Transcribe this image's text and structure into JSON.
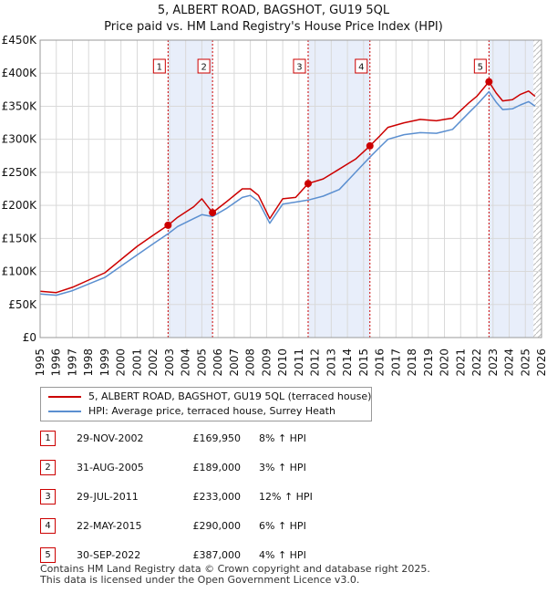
{
  "header": {
    "title": "5, ALBERT ROAD, BAGSHOT, GU19 5QL",
    "subtitle": "Price paid vs. HM Land Registry's House Price Index (HPI)"
  },
  "legend": {
    "series_property": "5, ALBERT ROAD, BAGSHOT, GU19 5QL (terraced house)",
    "series_hpi": "HPI: Average price, terraced house, Surrey Heath"
  },
  "colors": {
    "property": "#cc0000",
    "hpi": "#5b8fd0",
    "shade": "#e8eefa",
    "grid": "#d9d9d9",
    "marker_border": "#cc0000"
  },
  "sales": [
    {
      "num": "1",
      "date": "29-NOV-2002",
      "price": "£169,950",
      "hpi": "8% ↑ HPI"
    },
    {
      "num": "2",
      "date": "31-AUG-2005",
      "price": "£189,000",
      "hpi": "3% ↑ HPI"
    },
    {
      "num": "3",
      "date": "29-JUL-2011",
      "price": "£233,000",
      "hpi": "12% ↑ HPI"
    },
    {
      "num": "4",
      "date": "22-MAY-2015",
      "price": "£290,000",
      "hpi": "6% ↑ HPI"
    },
    {
      "num": "5",
      "date": "30-SEP-2022",
      "price": "£387,000",
      "hpi": "4% ↑ HPI"
    }
  ],
  "footer": {
    "line1": "Contains HM Land Registry data © Crown copyright and database right 2025.",
    "line2": "This data is licensed under the Open Government Licence v3.0."
  },
  "chart_data": {
    "type": "line",
    "title": "5, ALBERT ROAD, BAGSHOT, GU19 5QL",
    "subtitle": "Price paid vs. HM Land Registry's House Price Index (HPI)",
    "xlabel": "",
    "ylabel": "",
    "xlim": [
      1995,
      2026
    ],
    "ylim": [
      0,
      450000
    ],
    "y_ticks": [
      0,
      50000,
      100000,
      150000,
      200000,
      250000,
      300000,
      350000,
      400000,
      450000
    ],
    "y_tick_labels": [
      "£0",
      "£50K",
      "£100K",
      "£150K",
      "£200K",
      "£250K",
      "£300K",
      "£350K",
      "£400K",
      "£450K"
    ],
    "x_ticks": [
      1995,
      1996,
      1997,
      1998,
      1999,
      2000,
      2001,
      2002,
      2003,
      2004,
      2005,
      2006,
      2007,
      2008,
      2009,
      2010,
      2011,
      2012,
      2013,
      2014,
      2015,
      2016,
      2017,
      2018,
      2019,
      2020,
      2021,
      2022,
      2023,
      2024,
      2025,
      2026
    ],
    "grid": true,
    "legend_position": "bottom-left",
    "shaded_ranges": [
      [
        2002.91,
        2005.66
      ],
      [
        2011.57,
        2015.39
      ],
      [
        2022.75,
        2025.5
      ]
    ],
    "future_hatch_from": 2025.5,
    "series": [
      {
        "name": "5, ALBERT ROAD, BAGSHOT, GU19 5QL (terraced house)",
        "x": [
          1995.0,
          1996.0,
          1997.0,
          1998.0,
          1999.0,
          2000.0,
          2001.0,
          2002.0,
          2002.91,
          2003.5,
          2004.5,
          2005.0,
          2005.66,
          2006.5,
          2007.5,
          2008.0,
          2008.5,
          2009.2,
          2010.0,
          2010.8,
          2011.57,
          2012.5,
          2013.5,
          2014.5,
          2015.39,
          2016.0,
          2016.5,
          2017.5,
          2018.5,
          2019.5,
          2020.0,
          2020.5,
          2021.5,
          2022.0,
          2022.75,
          2023.2,
          2023.6,
          2024.2,
          2024.7,
          2025.2,
          2025.6
        ],
        "values": [
          70000,
          68000,
          76000,
          87000,
          98000,
          118000,
          138000,
          155000,
          169950,
          182000,
          198000,
          210000,
          189000,
          205000,
          225000,
          225000,
          215000,
          180000,
          210000,
          212000,
          233000,
          240000,
          255000,
          270000,
          290000,
          305000,
          318000,
          325000,
          330000,
          328000,
          330000,
          332000,
          355000,
          365000,
          387000,
          370000,
          358000,
          360000,
          368000,
          373000,
          365000
        ]
      },
      {
        "name": "HPI: Average price, terraced house, Surrey Heath",
        "x": [
          1995.0,
          1996.0,
          1997.0,
          1998.0,
          1999.0,
          2000.0,
          2001.0,
          2002.0,
          2002.91,
          2003.5,
          2004.5,
          2005.0,
          2005.66,
          2006.5,
          2007.5,
          2008.0,
          2008.5,
          2009.2,
          2010.0,
          2010.8,
          2011.57,
          2012.5,
          2013.5,
          2014.5,
          2015.39,
          2016.0,
          2016.5,
          2017.5,
          2018.5,
          2019.5,
          2020.0,
          2020.5,
          2021.5,
          2022.0,
          2022.75,
          2023.2,
          2023.6,
          2024.2,
          2024.7,
          2025.2,
          2025.6
        ],
        "values": [
          66000,
          64000,
          71000,
          81000,
          91000,
          108000,
          125000,
          142000,
          157000,
          168000,
          180000,
          186000,
          183000,
          195000,
          212000,
          215000,
          206000,
          173000,
          202000,
          205000,
          208000,
          214000,
          224000,
          250000,
          273000,
          288000,
          300000,
          307000,
          310000,
          309000,
          312000,
          315000,
          340000,
          352000,
          372000,
          356000,
          345000,
          346000,
          352000,
          357000,
          350000
        ]
      }
    ],
    "sale_markers": [
      {
        "label": "1",
        "x": 2002.91,
        "value": 169950
      },
      {
        "label": "2",
        "x": 2005.66,
        "value": 189000
      },
      {
        "label": "3",
        "x": 2011.57,
        "value": 233000
      },
      {
        "label": "4",
        "x": 2015.39,
        "value": 290000
      },
      {
        "label": "5",
        "x": 2022.75,
        "value": 387000
      }
    ]
  }
}
